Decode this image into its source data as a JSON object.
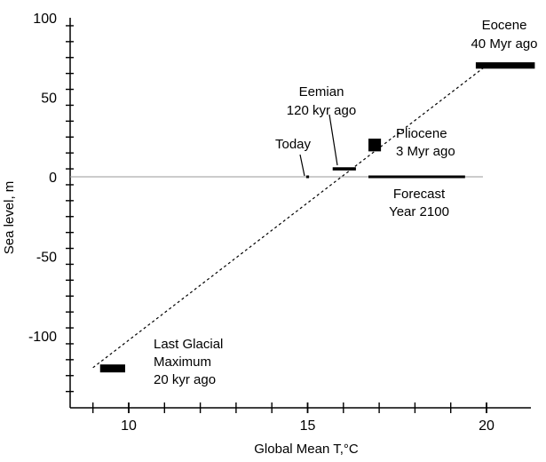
{
  "chart_data": {
    "type": "scatter",
    "title": "",
    "xlabel": "Global Mean T,°C",
    "ylabel": "Sea level, m",
    "xlim": [
      8.5,
      21
    ],
    "ylim": [
      -135,
      100
    ],
    "x_ticks": [
      {
        "value": 10,
        "label": "10"
      },
      {
        "value": 15,
        "label": "15"
      },
      {
        "value": 20,
        "label": "20"
      }
    ],
    "y_ticks": [
      {
        "value": 100,
        "label": "100"
      },
      {
        "value": 50,
        "label": "50"
      },
      {
        "value": 0,
        "label": "0"
      },
      {
        "value": -50,
        "label": "-50"
      },
      {
        "value": -100,
        "label": "-100"
      }
    ],
    "x_minor_step": 1,
    "y_minor_step": 10,
    "grid": false,
    "zero_line": {
      "y": 0,
      "x_end": 19.9,
      "color": "#999999"
    },
    "trend_line": {
      "from": [
        9,
        -120
      ],
      "to": [
        20,
        70
      ],
      "style": "dashed"
    },
    "colors": {
      "marker": "#000000",
      "axis": "#000000",
      "trend": "#000000"
    },
    "points": [
      {
        "name": "Last Glacial Maximum",
        "x": [
          9.2,
          9.9
        ],
        "y": [
          -123,
          -118
        ],
        "label": [
          "Last Glacial",
          "Maximum",
          "20 kyr ago"
        ]
      },
      {
        "name": "Today",
        "x": [
          14.96,
          15.04
        ],
        "y": [
          -0.5,
          0.5
        ],
        "label": [
          "Today"
        ]
      },
      {
        "name": "Eemian",
        "x": [
          15.7,
          16.35
        ],
        "y": [
          4,
          6
        ],
        "label": [
          "Eemian",
          "120 kyr ago"
        ]
      },
      {
        "name": "Pliocene",
        "x": [
          16.7,
          17.05
        ],
        "y": [
          16,
          24
        ],
        "label": [
          "Pliocene",
          "3 Myr ago"
        ]
      },
      {
        "name": "Forecast",
        "x": [
          16.7,
          19.4
        ],
        "y": [
          -0.5,
          0.5
        ],
        "label": [
          "Forecast",
          "Year 2100"
        ]
      },
      {
        "name": "Eocene",
        "x": [
          19.7,
          21.35
        ],
        "y": [
          68,
          72
        ],
        "label": [
          "Eocene",
          "40 Myr ago"
        ]
      }
    ]
  }
}
